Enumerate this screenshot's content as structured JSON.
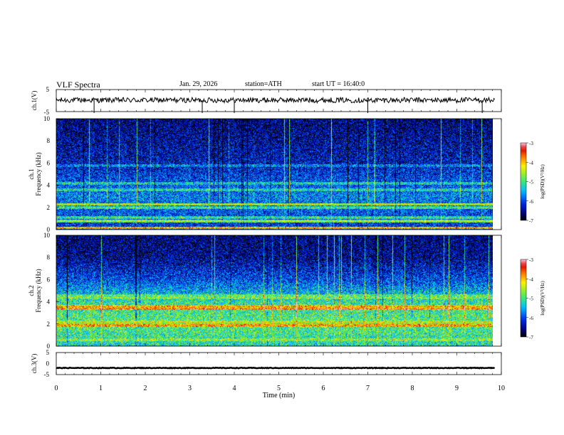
{
  "header": {
    "title": "VLF Spectra",
    "date": "Jan. 29, 2026",
    "station": "station=ATH",
    "start": "start UT =  16:40:0"
  },
  "chart_data": [
    {
      "type": "line",
      "name": "ch1-waveform",
      "ylabel": "ch.1(V)",
      "ylim": [
        -5,
        5
      ],
      "y_ticks": [
        "5",
        "-5"
      ],
      "xlim": [
        0,
        10
      ],
      "mean_level_v": 0.2,
      "noise_amplitude_v": 1.2,
      "spikes_min": [
        0.85,
        3.28,
        4.0,
        7.0,
        9.57
      ]
    },
    {
      "type": "heatmap",
      "name": "ch1-spectrogram",
      "ylabel": "ch.1\nFrequency (kHz)",
      "ylim": [
        0,
        10
      ],
      "y_ticks": [
        "0",
        "2",
        "4",
        "6",
        "8",
        "10"
      ],
      "xlim": [
        0,
        9.8
      ],
      "colorbar": {
        "label": "log(PSD)(V²/Hz)",
        "ticks": [
          "-3",
          "-4",
          "-5",
          "-6",
          "-7"
        ],
        "range": [
          -7,
          -3
        ]
      },
      "bands_khz": [
        [
          0.2,
          -4.0
        ],
        [
          0.8,
          -4.6
        ],
        [
          1.1,
          -5.0
        ],
        [
          2.0,
          -5.0
        ],
        [
          2.3,
          -4.4
        ],
        [
          3.6,
          -5.1
        ],
        [
          4.2,
          -5.2
        ],
        [
          5.8,
          -5.6
        ]
      ],
      "background": [
        [
          0,
          -6.2
        ],
        [
          3,
          -5.7
        ],
        [
          6,
          -6.3
        ],
        [
          10,
          -6.6
        ]
      ]
    },
    {
      "type": "heatmap",
      "name": "ch2-spectrogram",
      "ylabel": "ch.2\nFrequency (kHz)",
      "ylim": [
        0,
        10
      ],
      "y_ticks": [
        "0",
        "2",
        "4",
        "6",
        "8",
        "10"
      ],
      "xlim": [
        0,
        9.8
      ],
      "colorbar": {
        "label": "log(PSD)(V²/Hz)",
        "ticks": [
          "-3",
          "-4",
          "-5",
          "-6",
          "-7"
        ],
        "range": [
          -7,
          -3
        ]
      },
      "bands_khz": [
        [
          0.6,
          -4.6
        ],
        [
          1.9,
          -3.8
        ],
        [
          2.2,
          -4.3
        ],
        [
          3.4,
          -3.6
        ],
        [
          3.6,
          -3.9
        ],
        [
          4.4,
          -4.7
        ],
        [
          4.6,
          -4.8
        ]
      ],
      "background": [
        [
          0,
          -5.2
        ],
        [
          2,
          -4.9
        ],
        [
          4,
          -5.1
        ],
        [
          6,
          -6.0
        ],
        [
          8,
          -6.5
        ],
        [
          10,
          -6.6
        ]
      ]
    },
    {
      "type": "line",
      "name": "ch3-waveform",
      "ylabel": "ch.3(V)",
      "ylim": [
        -5,
        5
      ],
      "y_ticks": [
        "5",
        "0",
        "-5"
      ],
      "xlim": [
        0,
        10
      ],
      "mean_level_v": -2.0,
      "noise_amplitude_v": 0.15
    }
  ],
  "x_axis": {
    "label": "Time (min)",
    "ticks": [
      "0",
      "1",
      "2",
      "3",
      "4",
      "5",
      "6",
      "7",
      "8",
      "9",
      "10"
    ],
    "range": [
      0,
      10
    ]
  }
}
